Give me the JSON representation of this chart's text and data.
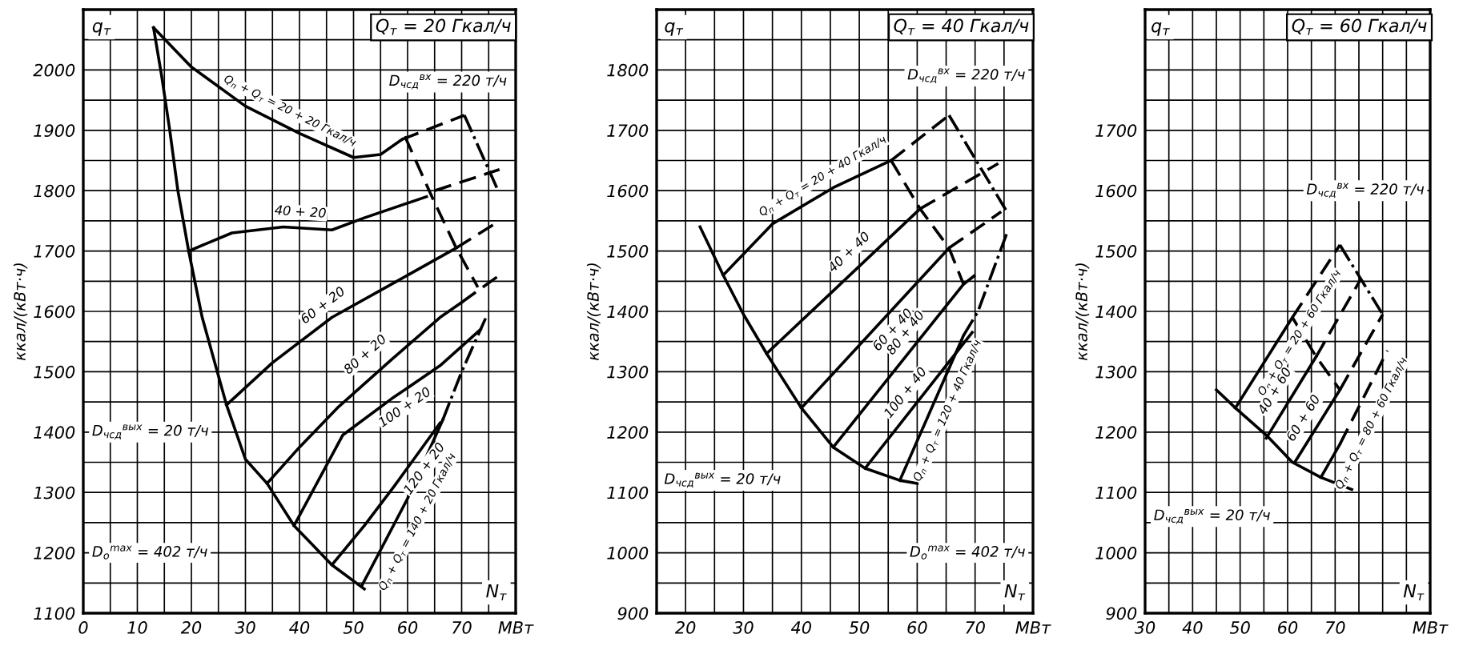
{
  "chart_data": [
    {
      "type": "line",
      "title": "Q$_{т}$ = 20 Гкал/ч",
      "ylabel": "ккал/(кВт·ч)",
      "grid": true,
      "xlim": [
        0,
        80
      ],
      "ylim": [
        1100,
        2100
      ],
      "xticks": [
        0,
        {
          "value": 5,
          "label": null
        },
        10,
        {
          "value": 15,
          "label": null
        },
        20,
        {
          "value": 25,
          "label": null
        },
        30,
        {
          "value": 35,
          "label": null
        },
        40,
        {
          "value": 45,
          "label": null
        },
        50,
        {
          "value": 55,
          "label": null
        },
        60,
        {
          "value": 65,
          "label": null
        },
        70,
        {
          "value": 75,
          "label": null
        },
        {
          "value": 80,
          "label": "МВт"
        }
      ],
      "yticks": [
        1100,
        {
          "value": 1150,
          "label": null
        },
        1200,
        {
          "value": 1250,
          "label": null
        },
        1300,
        {
          "value": 1350,
          "label": null
        },
        1400,
        {
          "value": 1450,
          "label": null
        },
        1500,
        {
          "value": 1550,
          "label": null
        },
        1600,
        {
          "value": 1650,
          "label": null
        },
        1700,
        {
          "value": 1750,
          "label": null
        },
        1800,
        {
          "value": 1850,
          "label": null
        },
        1900,
        {
          "value": 1950,
          "label": null
        },
        2000,
        {
          "value": 2050,
          "label": null
        },
        {
          "value": 2100,
          "label": null
        }
      ],
      "series": [
        {
          "color": "#000000",
          "line_style": "solid",
          "x": [
            13,
            14.5,
            16,
            17.5,
            19.5,
            22,
            26.5,
            30,
            34,
            39,
            46,
            52
          ],
          "values": [
            2070,
            1990,
            1900,
            1800,
            1700,
            1590,
            1445,
            1355,
            1315,
            1245,
            1180,
            1140
          ]
        },
        {
          "color": "#000000",
          "line_style": "solid",
          "x": [
            13,
            20,
            30,
            40,
            50,
            55,
            59
          ],
          "values": [
            2070,
            2005,
            1940,
            1895,
            1855,
            1860,
            1885
          ]
        },
        {
          "color": "#000000",
          "line_style": "dashed",
          "x": [
            59,
            70.5
          ],
          "values": [
            1885,
            1925
          ]
        },
        {
          "color": "#000000",
          "line_style": "solid",
          "x": [
            19.5,
            27.5,
            37,
            46,
            52,
            63.5
          ],
          "values": [
            1700,
            1730,
            1740,
            1735,
            1755,
            1790
          ]
        },
        {
          "color": "#000000",
          "line_style": "dashed",
          "x": [
            65,
            77
          ],
          "values": [
            1800,
            1835
          ]
        },
        {
          "color": "#000000",
          "line_style": "solid",
          "x": [
            26.5,
            35,
            46,
            58,
            69
          ],
          "values": [
            1445,
            1515,
            1590,
            1650,
            1705
          ]
        },
        {
          "color": "#000000",
          "line_style": "dashed",
          "x": [
            69,
            77
          ],
          "values": [
            1705,
            1750
          ]
        },
        {
          "color": "#000000",
          "line_style": "solid",
          "x": [
            34,
            40,
            47,
            57,
            66,
            70
          ],
          "values": [
            1315,
            1375,
            1440,
            1520,
            1590,
            1615
          ]
        },
        {
          "color": "#000000",
          "line_style": "dashed",
          "x": [
            70,
            77
          ],
          "values": [
            1615,
            1660
          ]
        },
        {
          "color": "#000000",
          "line_style": "solid",
          "x": [
            39,
            48,
            57,
            66,
            73.5
          ],
          "values": [
            1245,
            1395,
            1455,
            1510,
            1570
          ]
        },
        {
          "color": "#000000",
          "line_style": "solid",
          "x": [
            46,
            52,
            57.5,
            66
          ],
          "values": [
            1180,
            1245,
            1310,
            1415
          ]
        },
        {
          "color": "#000000",
          "line_style": "solid",
          "x": [
            51.5,
            60,
            66.5
          ],
          "values": [
            1145,
            1290,
            1420
          ]
        },
        {
          "color": "#000000",
          "line_style": "dotted",
          "x": [
            66.5,
            70,
            74.5
          ],
          "values": [
            1420,
            1500,
            1590
          ]
        },
        {
          "color": "#000000",
          "line_style": "dashed",
          "x": [
            59.5,
            64.5,
            69,
            73
          ],
          "values": [
            1890,
            1790,
            1705,
            1640
          ]
        },
        {
          "color": "#000000",
          "line_style": "dotted",
          "x": [
            70.5,
            76.5
          ],
          "values": [
            1925,
            1805
          ]
        }
      ],
      "annotations": [
        "q$_{т}$",
        "N$_{т}$",
        {
          "text": "Q$_{п}$ + Q$_{т}$ = 20 + 20 Гкал/ч",
          "x": 37,
          "y": 1910
        },
        {
          "text": "40 + 20",
          "x": 40,
          "y": 1740
        },
        {
          "text": "60 + 20",
          "x": 46,
          "y": 1590
        },
        {
          "text": "80 + 20",
          "x": 54,
          "y": 1510
        },
        {
          "text": "100 + 20",
          "x": 58,
          "y": 1460
        },
        {
          "text": "120 + 20",
          "x": 61,
          "y": 1353
        },
        {
          "text": "Q$_{п}$ + Q$_{т}$ = 140 + 20 Гкал/ч",
          "x": 59.5,
          "y": 1262
        },
        "D$_{чсд}$$^{вх}$ = 220 т/ч",
        "D$_{чсд}$$^{вых}$ = 20 т/ч",
        "D$_{о}$$^{max}$ = 402 т/ч"
      ]
    },
    {
      "type": "line",
      "title": "Q$_{т}$ = 40 Гкал/ч",
      "ylabel": "ккал/(кВт·ч)",
      "grid": true,
      "xlim": [
        15,
        80
      ],
      "ylim": [
        900,
        1900
      ],
      "xticks": [
        {
          "value": 15,
          "label": null
        },
        20,
        {
          "value": 25,
          "label": null
        },
        30,
        {
          "value": 35,
          "label": null
        },
        40,
        {
          "value": 45,
          "label": null
        },
        50,
        {
          "value": 55,
          "label": null
        },
        60,
        {
          "value": 65,
          "label": null
        },
        70,
        {
          "value": 75,
          "label": null
        },
        {
          "value": 80,
          "label": "МВт"
        }
      ],
      "yticks": [
        900,
        {
          "value": 950,
          "label": null
        },
        1000,
        {
          "value": 1050,
          "label": null
        },
        1100,
        {
          "value": 1150,
          "label": null
        },
        1200,
        {
          "value": 1250,
          "label": null
        },
        1300,
        {
          "value": 1350,
          "label": null
        },
        1400,
        {
          "value": 1450,
          "label": null
        },
        1500,
        {
          "value": 1550,
          "label": null
        },
        1600,
        {
          "value": 1650,
          "label": null
        },
        1700,
        {
          "value": 1750,
          "label": null
        },
        1800,
        {
          "value": 1850,
          "label": null
        },
        {
          "value": 1900,
          "label": null
        }
      ],
      "series": [
        {
          "color": "#000000",
          "line_style": "solid",
          "x": [
            22.5,
            26.5,
            30,
            34,
            40,
            45.5,
            51,
            57,
            60
          ],
          "values": [
            1540,
            1460,
            1395,
            1330,
            1240,
            1175,
            1140,
            1120,
            1115
          ]
        },
        {
          "color": "#000000",
          "line_style": "solid",
          "x": [
            26.5,
            35,
            45.5,
            55.5
          ],
          "values": [
            1460,
            1545,
            1605,
            1650
          ]
        },
        {
          "color": "#000000",
          "line_style": "dashed",
          "x": [
            55.5,
            65.5
          ],
          "values": [
            1650,
            1725
          ]
        },
        {
          "color": "#000000",
          "line_style": "solid",
          "x": [
            34,
            60.5
          ],
          "values": [
            1330,
            1570
          ]
        },
        {
          "color": "#000000",
          "line_style": "dashed",
          "x": [
            60.5,
            74
          ],
          "values": [
            1570,
            1645
          ]
        },
        {
          "color": "#000000",
          "line_style": "solid",
          "x": [
            40,
            65.5
          ],
          "values": [
            1240,
            1505
          ]
        },
        {
          "color": "#000000",
          "line_style": "dashed",
          "x": [
            65.5,
            74.5
          ],
          "values": [
            1505,
            1565
          ]
        },
        {
          "color": "#000000",
          "line_style": "solid",
          "x": [
            45.5,
            68
          ],
          "values": [
            1175,
            1445
          ]
        },
        {
          "color": "#000000",
          "line_style": "dashed",
          "x": [
            68,
            70
          ],
          "values": [
            1445,
            1460
          ]
        },
        {
          "color": "#000000",
          "line_style": "solid",
          "x": [
            51,
            69.5
          ],
          "values": [
            1140,
            1365
          ]
        },
        {
          "color": "#000000",
          "line_style": "solid",
          "x": [
            57,
            68
          ],
          "values": [
            1120,
            1360
          ]
        },
        {
          "color": "#000000",
          "line_style": "dotted",
          "x": [
            68,
            70.5,
            75.5
          ],
          "values": [
            1360,
            1400,
            1530
          ]
        },
        {
          "color": "#000000",
          "line_style": "dotted",
          "x": [
            65.5,
            75.5
          ],
          "values": [
            1725,
            1565
          ]
        },
        {
          "color": "#000000",
          "line_style": "dashed",
          "x": [
            55.5,
            60.5,
            65.5,
            68
          ],
          "values": [
            1650,
            1570,
            1505,
            1445
          ]
        }
      ],
      "annotations": [
        "q$_{т}$",
        "N$_{т}$",
        {
          "text": "Q$_{п}$ + Q$_{т}$ = 20 + 40 Гкал/ч",
          "x": 45,
          "y": 1603
        },
        {
          "text": "40 + 40",
          "x": 50,
          "y": 1480
        },
        {
          "text": "60 + 40",
          "x": 54,
          "y": 1385
        },
        {
          "text": "80 + 40",
          "x": 60,
          "y": 1349
        },
        {
          "text": "100 + 40",
          "x": 60,
          "y": 1250
        },
        {
          "text": "Q$_{п}$ + Q$_{т}$ = 120 + 40 Гкал/ч",
          "x": 63,
          "y": 1245
        },
        "D$_{чсд}$$^{вх}$ = 220 т/ч",
        "D$_{чсд}$$^{вых}$ = 20 т/ч",
        "D$_{о}$$^{max}$ = 402 т/ч"
      ]
    },
    {
      "type": "line",
      "title": "Q$_{т}$ = 60 Гкал/ч",
      "ylabel": "ккал/(кВт·ч)",
      "grid": true,
      "xlim": [
        30,
        90
      ],
      "ylim": [
        900,
        1900
      ],
      "xticks": [
        30,
        {
          "value": 35,
          "label": null
        },
        40,
        {
          "value": 45,
          "label": null
        },
        50,
        {
          "value": 55,
          "label": null
        },
        60,
        {
          "value": 65,
          "label": null
        },
        70,
        {
          "value": 75,
          "label": null
        },
        {
          "value": 80,
          "label": null
        },
        {
          "value": 85,
          "label": null
        },
        {
          "value": 90,
          "label": "МВт"
        }
      ],
      "yticks": [
        900,
        {
          "value": 950,
          "label": null
        },
        1000,
        {
          "value": 1050,
          "label": null
        },
        1100,
        {
          "value": 1150,
          "label": null
        },
        1200,
        {
          "value": 1250,
          "label": null
        },
        1300,
        {
          "value": 1350,
          "label": null
        },
        1400,
        {
          "value": 1450,
          "label": null
        },
        1500,
        {
          "value": 1550,
          "label": null
        },
        1600,
        {
          "value": 1650,
          "label": null
        },
        1700,
        {
          "value": 1750,
          "label": null
        },
        {
          "value": 1800,
          "label": null
        },
        {
          "value": 1850,
          "label": null
        },
        {
          "value": 1900,
          "label": null
        }
      ],
      "series": [
        {
          "color": "#000000",
          "line_style": "solid",
          "x": [
            45,
            49,
            55.5,
            61,
            67,
            73.5
          ],
          "values": [
            1270,
            1240,
            1195,
            1150,
            1125,
            1105
          ]
        },
        {
          "color": "#000000",
          "line_style": "solid",
          "x": [
            49,
            61
          ],
          "values": [
            1240,
            1390
          ]
        },
        {
          "color": "#000000",
          "line_style": "dashed",
          "x": [
            61,
            71
          ],
          "values": [
            1390,
            1510
          ]
        },
        {
          "color": "#000000",
          "line_style": "solid",
          "x": [
            55.5,
            66
          ],
          "values": [
            1190,
            1325
          ]
        },
        {
          "color": "#000000",
          "line_style": "dashed",
          "x": [
            66,
            75.5
          ],
          "values": [
            1325,
            1455
          ]
        },
        {
          "color": "#000000",
          "line_style": "solid",
          "x": [
            61.5,
            71
          ],
          "values": [
            1150,
            1270
          ]
        },
        {
          "color": "#000000",
          "line_style": "dashed",
          "x": [
            71,
            80
          ],
          "values": [
            1270,
            1395
          ]
        },
        {
          "color": "#000000",
          "line_style": "solid",
          "x": [
            67,
            71
          ],
          "values": [
            1125,
            1180
          ]
        },
        {
          "color": "#000000",
          "line_style": "dashed",
          "x": [
            71,
            81
          ],
          "values": [
            1180,
            1335
          ]
        },
        {
          "color": "#000000",
          "line_style": "dotted",
          "x": [
            71,
            80
          ],
          "values": [
            1510,
            1395
          ]
        },
        {
          "color": "#000000",
          "line_style": "dashed",
          "x": [
            61,
            66,
            71
          ],
          "values": [
            1390,
            1325,
            1270
          ]
        }
      ],
      "annotations": [
        "q$_{т}$",
        "N$_{т}$",
        {
          "text": "Q$_{п}$ + Q$_{т}$ = 20 + 60 Гкал/ч",
          "x": 60,
          "y": 1377
        },
        {
          "text": "40 + 60",
          "x": 60,
          "y": 1255
        },
        {
          "text": "60 + 60",
          "x": 66,
          "y": 1210
        },
        {
          "text": "Q$_{п}$ + Q$_{т}$ = 80 + 60 Гкал/ч",
          "x": 75,
          "y": 1225
        },
        "D$_{чсд}$$^{вх}$ = 220 т/ч",
        "D$_{чсд}$$^{вых}$ = 20 т/ч"
      ]
    }
  ]
}
